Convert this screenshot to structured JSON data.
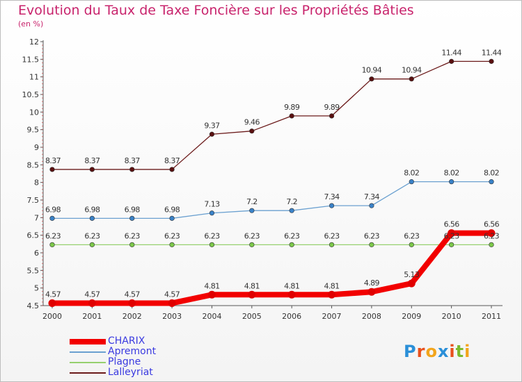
{
  "title": "Evolution du Taux de Taxe Foncière sur les Propriétés Bâties",
  "unit": "(en %)",
  "logo": {
    "text": "Proxiti",
    "colors": [
      "#2a8fd8",
      "#e8501c",
      "#f2a51c",
      "#2a8fd8",
      "#e8501c",
      "#7cba2e",
      "#f2a51c"
    ]
  },
  "chart_data": {
    "type": "line",
    "x": [
      "2000",
      "2001",
      "2002",
      "2003",
      "2004",
      "2005",
      "2006",
      "2007",
      "2008",
      "2009",
      "2010",
      "2011"
    ],
    "ylim": [
      4.5,
      12
    ],
    "yticks": [
      "4.5",
      "5",
      "5.5",
      "6",
      "6.5",
      "7",
      "7.5",
      "8",
      "8.5",
      "9",
      "9.5",
      "10",
      "10.5",
      "11",
      "11.5",
      "12"
    ],
    "grid": false,
    "legend": "bottom-left",
    "series": [
      {
        "name": "Lalleyriat",
        "color": "#6b1a1a",
        "marker": "#5a1010",
        "width": 1.3,
        "values": [
          8.37,
          8.37,
          8.37,
          8.37,
          9.37,
          9.46,
          9.89,
          9.89,
          10.94,
          10.94,
          11.44,
          11.44
        ],
        "labels": [
          "8.37",
          "8.37",
          "8.37",
          "8.37",
          "9.37",
          "9.46",
          "9.89",
          "9.89",
          "10.94",
          "10.94",
          "11.44",
          "11.44"
        ]
      },
      {
        "name": "Apremont",
        "color": "#6aa0d0",
        "marker": "#3a82c8",
        "width": 1.3,
        "values": [
          6.98,
          6.98,
          6.98,
          6.98,
          7.13,
          7.2,
          7.2,
          7.34,
          7.34,
          8.02,
          8.02,
          8.02
        ],
        "labels": [
          "6.98",
          "6.98",
          "6.98",
          "6.98",
          "7.13",
          "7.2",
          "7.2",
          "7.34",
          "7.34",
          "8.02",
          "8.02",
          "8.02"
        ]
      },
      {
        "name": "Plagne",
        "color": "#96d06e",
        "marker": "#7cc84a",
        "width": 1.3,
        "values": [
          6.23,
          6.23,
          6.23,
          6.23,
          6.23,
          6.23,
          6.23,
          6.23,
          6.23,
          6.23,
          6.23,
          6.23
        ],
        "labels": [
          "6.23",
          "6.23",
          "6.23",
          "6.23",
          "6.23",
          "6.23",
          "6.23",
          "6.23",
          "6.23",
          "6.23",
          "6.23",
          "6.23"
        ]
      },
      {
        "name": "CHARIX",
        "color": "#f20000",
        "marker": "#e00000",
        "width": 8,
        "values": [
          4.57,
          4.57,
          4.57,
          4.57,
          4.81,
          4.81,
          4.81,
          4.81,
          4.89,
          5.13,
          6.56,
          6.56
        ],
        "labels": [
          "4.57",
          "4.57",
          "4.57",
          "4.57",
          "4.81",
          "4.81",
          "4.81",
          "4.81",
          "4.89",
          "5.13",
          "6.56",
          "6.56"
        ]
      }
    ],
    "legend_order": [
      "CHARIX",
      "Apremont",
      "Plagne",
      "Lalleyriat"
    ]
  }
}
